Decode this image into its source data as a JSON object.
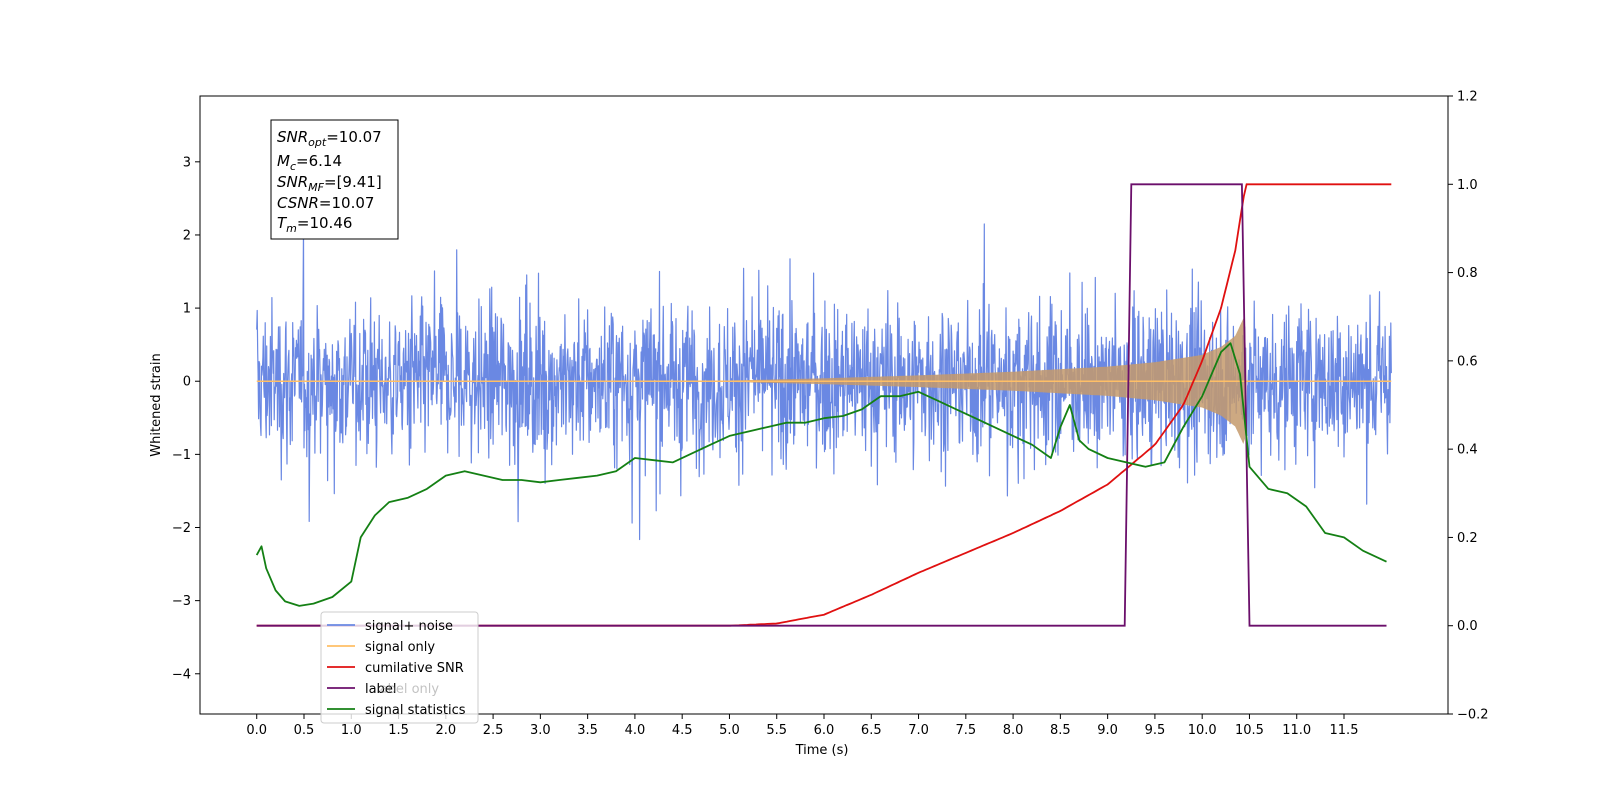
{
  "chart_data": {
    "type": "line",
    "xlabel": "Time (s)",
    "ylabel": "Whitened strain",
    "xlim": [
      -0.6,
      12.6
    ],
    "ylim": [
      -4.55,
      3.9
    ],
    "y2lim": [
      -0.2,
      1.2
    ],
    "x_ticks": [
      "0.0",
      "0.5",
      "1.0",
      "1.5",
      "2.0",
      "2.5",
      "3.0",
      "3.5",
      "4.0",
      "4.5",
      "5.0",
      "5.5",
      "6.0",
      "6.5",
      "7.0",
      "7.5",
      "8.0",
      "8.5",
      "9.0",
      "9.5",
      "10.0",
      "10.5",
      "11.0",
      "11.5"
    ],
    "y_ticks": [
      "3",
      "2",
      "1",
      "0",
      "−1",
      "−2",
      "−3",
      "−4"
    ],
    "y2_ticks": [
      "1.2",
      "1.0",
      "0.8",
      "0.6",
      "0.4",
      "0.2",
      "0.0",
      "−0.2"
    ],
    "legend_placement": "lower-left",
    "annotation": {
      "snr_opt": {
        "base": "SNR",
        "sub": "opt",
        "value": "=10.07"
      },
      "mc": {
        "base": "M",
        "sub": "c",
        "value": "=6.14"
      },
      "snr_mf": {
        "base": "SNR",
        "sub": "MF",
        "value": "=[9.41]"
      },
      "csnr": {
        "base": "CSNR",
        "value": "=10.07"
      },
      "tm": {
        "base": "T",
        "sub": "m",
        "value": "=10.46"
      }
    },
    "series": [
      {
        "name": "signal+ noise",
        "color": "#6a88e3",
        "axis": "left",
        "note": "noise band approx. -2 to 2.6 with spikes",
        "envelope_x": [
          0,
          2,
          4,
          6,
          8,
          10,
          12
        ],
        "envelope": [
          1.8,
          1.8,
          1.8,
          1.8,
          1.8,
          1.8,
          1.8
        ]
      },
      {
        "name": "signal only",
        "color": "#ffbf66",
        "axis": "left",
        "envelope_x": [
          0,
          5.0,
          6.0,
          7.0,
          8.0,
          9.0,
          9.5,
          10.0,
          10.2,
          10.35,
          10.45,
          10.47
        ],
        "envelope": [
          0.0,
          0.01,
          0.04,
          0.08,
          0.13,
          0.2,
          0.26,
          0.36,
          0.47,
          0.62,
          0.9,
          0.0
        ]
      },
      {
        "name": "cumilative SNR",
        "color": "#e01010",
        "axis": "right",
        "x": [
          0,
          5.0,
          5.5,
          6.0,
          6.5,
          7.0,
          7.5,
          8.0,
          8.5,
          9.0,
          9.5,
          9.8,
          10.0,
          10.2,
          10.35,
          10.46,
          12.0
        ],
        "values": [
          0.0,
          0.0,
          0.005,
          0.025,
          0.07,
          0.12,
          0.165,
          0.21,
          0.26,
          0.32,
          0.41,
          0.5,
          0.6,
          0.72,
          0.85,
          1.0,
          1.0
        ]
      },
      {
        "name": "label",
        "color": "#6b0f6b",
        "axis": "right",
        "x": [
          0,
          9.18,
          9.25,
          10.42,
          10.5,
          11.95
        ],
        "values": [
          0.0,
          0.0,
          1.0,
          1.0,
          0.0,
          0.0
        ]
      },
      {
        "name": "label only",
        "color": "#777777",
        "axis": "right",
        "hidden_in_plot": true,
        "x": [],
        "values": []
      },
      {
        "name": "signal statistics",
        "color": "#148014",
        "axis": "right",
        "x": [
          0,
          0.05,
          0.1,
          0.2,
          0.3,
          0.45,
          0.6,
          0.8,
          1.0,
          1.1,
          1.25,
          1.4,
          1.6,
          1.8,
          2.0,
          2.2,
          2.4,
          2.6,
          2.8,
          3.0,
          3.2,
          3.4,
          3.6,
          3.8,
          4.0,
          4.2,
          4.4,
          4.6,
          4.8,
          5.0,
          5.2,
          5.4,
          5.6,
          5.8,
          6.0,
          6.2,
          6.4,
          6.6,
          6.8,
          7.0,
          7.2,
          7.4,
          7.6,
          7.8,
          8.0,
          8.2,
          8.4,
          8.5,
          8.6,
          8.7,
          8.8,
          9.0,
          9.2,
          9.4,
          9.6,
          9.8,
          10.0,
          10.2,
          10.3,
          10.4,
          10.5,
          10.7,
          10.9,
          11.1,
          11.3,
          11.5,
          11.7,
          11.95
        ],
        "values": [
          0.16,
          0.18,
          0.13,
          0.08,
          0.055,
          0.045,
          0.05,
          0.065,
          0.1,
          0.2,
          0.25,
          0.28,
          0.29,
          0.31,
          0.34,
          0.35,
          0.34,
          0.33,
          0.33,
          0.325,
          0.33,
          0.335,
          0.34,
          0.35,
          0.38,
          0.375,
          0.37,
          0.39,
          0.41,
          0.43,
          0.44,
          0.45,
          0.46,
          0.46,
          0.47,
          0.475,
          0.49,
          0.52,
          0.52,
          0.53,
          0.51,
          0.49,
          0.47,
          0.45,
          0.43,
          0.41,
          0.38,
          0.45,
          0.5,
          0.42,
          0.4,
          0.38,
          0.37,
          0.36,
          0.37,
          0.45,
          0.52,
          0.62,
          0.64,
          0.57,
          0.36,
          0.31,
          0.3,
          0.27,
          0.21,
          0.2,
          0.17,
          0.145
        ]
      }
    ]
  }
}
